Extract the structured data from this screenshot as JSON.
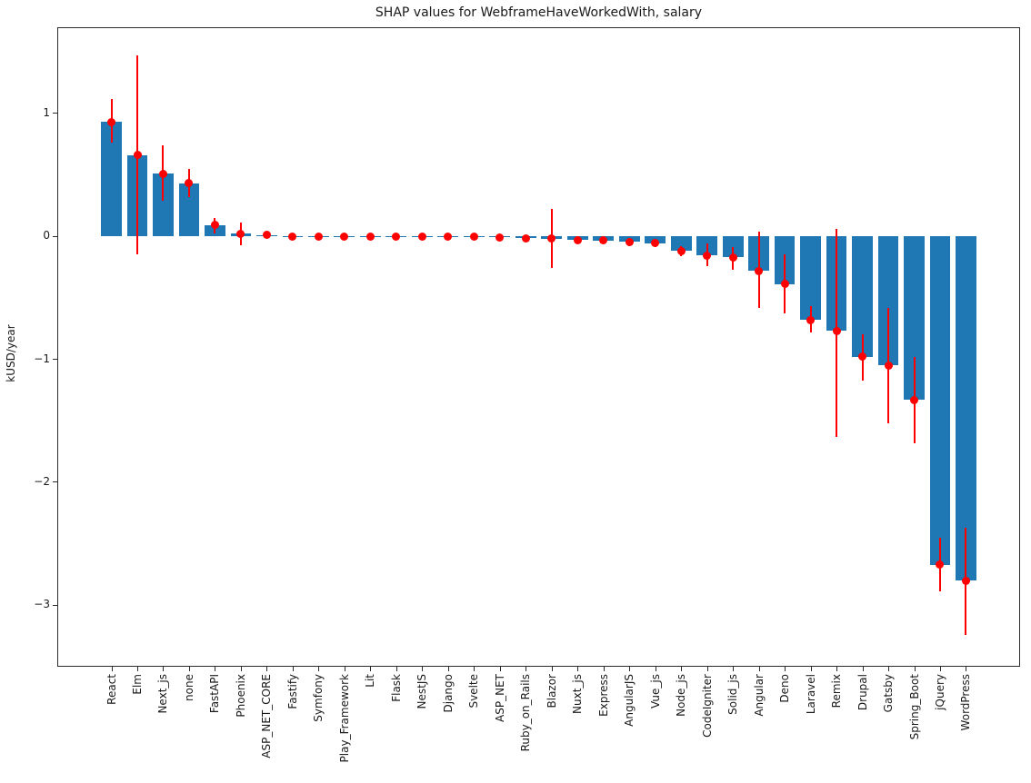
{
  "title": "SHAP values for WebframeHaveWorkedWith, salary",
  "ylabel": "kUSD/year",
  "colors": {
    "bar": "#1f77b4",
    "error": "#ff0000",
    "axis": "#2b2b2b",
    "text": "#1a1a1a",
    "background": "#ffffff"
  },
  "chart_data": {
    "type": "bar",
    "title": "SHAP values for WebframeHaveWorkedWith, salary",
    "xlabel": "",
    "ylabel": "kUSD/year",
    "ylim": [
      -3.5,
      1.7
    ],
    "yticks": [
      1,
      0,
      -1,
      -2,
      -3
    ],
    "grid": false,
    "legend": false,
    "error_bars": true,
    "marker": "red dot at mean, red vertical error line, no caps",
    "categories": [
      "React",
      "Elm",
      "Next_js",
      "none",
      "FastAPI",
      "Phoenix",
      "ASP_NET_CORE",
      "Fastify",
      "Symfony",
      "Play_Framework",
      "Lit",
      "Flask",
      "NestJS",
      "Django",
      "Svelte",
      "ASP_NET",
      "Ruby_on_Rails",
      "Blazor",
      "Nuxt_js",
      "Express",
      "AngularJS",
      "Vue_js",
      "Node_js",
      "CodeIgniter",
      "Solid_js",
      "Angular",
      "Deno",
      "Laravel",
      "Remix",
      "Drupal",
      "Gatsby",
      "Spring_Boot",
      "jQuery",
      "WordPress"
    ],
    "values": [
      0.93,
      0.66,
      0.51,
      0.43,
      0.09,
      0.02,
      0.01,
      0.0,
      0.0,
      0.0,
      0.0,
      0.0,
      0.0,
      0.0,
      -0.005,
      -0.01,
      -0.015,
      -0.02,
      -0.03,
      -0.035,
      -0.045,
      -0.055,
      -0.12,
      -0.155,
      -0.17,
      -0.28,
      -0.39,
      -0.68,
      -0.77,
      -0.98,
      -1.05,
      -1.33,
      -2.67,
      -2.8
    ],
    "error_low": [
      0.76,
      -0.15,
      0.29,
      0.32,
      0.02,
      -0.07,
      -0.01,
      0.0,
      0.0,
      0.0,
      0.0,
      0.0,
      0.0,
      0.0,
      -0.03,
      -0.03,
      -0.04,
      -0.26,
      -0.06,
      -0.06,
      -0.08,
      -0.09,
      -0.16,
      -0.24,
      -0.27,
      -0.58,
      -0.63,
      -0.78,
      -1.63,
      -1.17,
      -1.52,
      -1.68,
      -2.89,
      -3.24
    ],
    "error_high": [
      1.12,
      1.47,
      0.74,
      0.55,
      0.15,
      0.11,
      0.03,
      0.0,
      0.0,
      0.0,
      0.0,
      0.0,
      0.0,
      0.0,
      0.02,
      0.01,
      0.01,
      0.22,
      0.0,
      -0.01,
      -0.01,
      -0.03,
      -0.08,
      -0.06,
      -0.09,
      0.04,
      -0.15,
      -0.57,
      0.06,
      -0.8,
      -0.58,
      -0.98,
      -2.45,
      -2.37
    ]
  }
}
